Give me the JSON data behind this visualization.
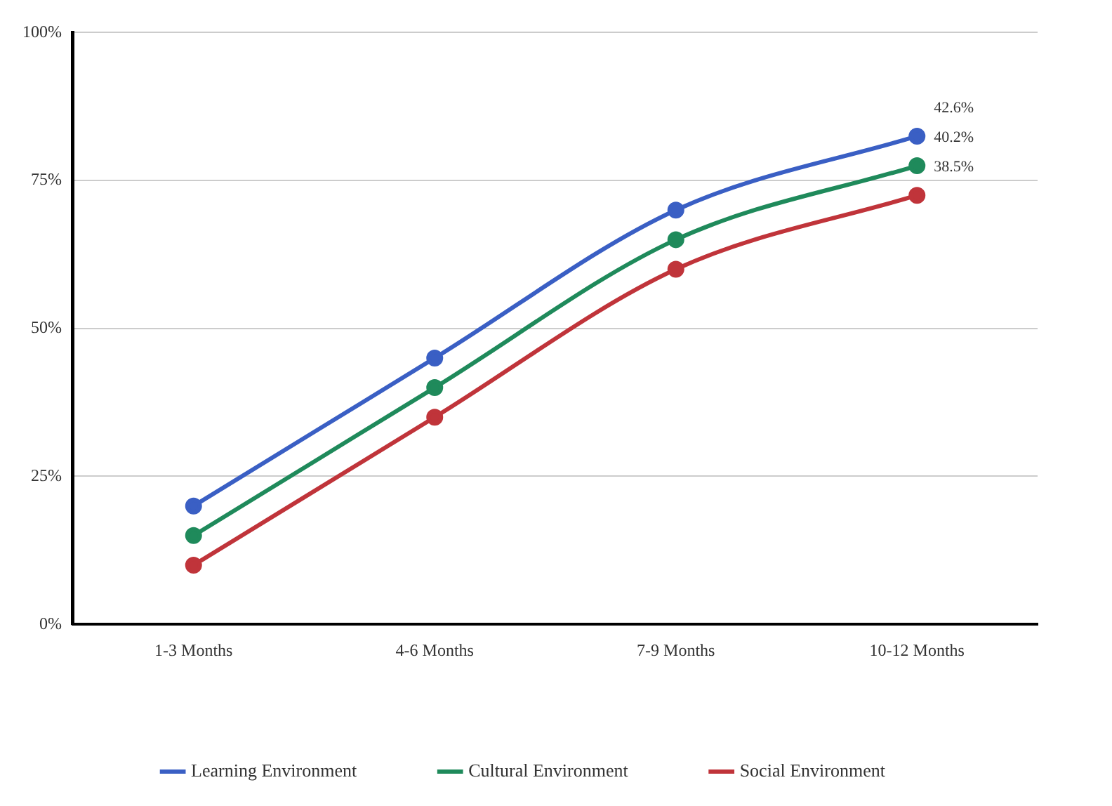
{
  "chart_data": {
    "type": "line",
    "categories": [
      "1-3 Months",
      "4-6 Months",
      "7-9 Months",
      "10-12 Months"
    ],
    "series": [
      {
        "name": "Learning Environment",
        "color": "#3a5fc4",
        "values": [
          20,
          45,
          70,
          82.5
        ]
      },
      {
        "name": "Cultural Environment",
        "color": "#1f8a5b",
        "values": [
          15,
          40,
          65,
          77.5
        ]
      },
      {
        "name": "Social Environment",
        "color": "#c0343a",
        "values": [
          10,
          35,
          60,
          72.5
        ]
      }
    ],
    "annotations": [
      "42.6%",
      "40.2%",
      "38.5%"
    ],
    "ylim": [
      0,
      100
    ],
    "yticks": [
      {
        "value": 0,
        "label": "0%"
      },
      {
        "value": 25,
        "label": "25%"
      },
      {
        "value": 50,
        "label": "50%"
      },
      {
        "value": 75,
        "label": "75%"
      },
      {
        "value": 100,
        "label": "100%"
      }
    ],
    "grid": "y",
    "legend": "bottom",
    "marker": "circle",
    "line_style": "solid"
  }
}
